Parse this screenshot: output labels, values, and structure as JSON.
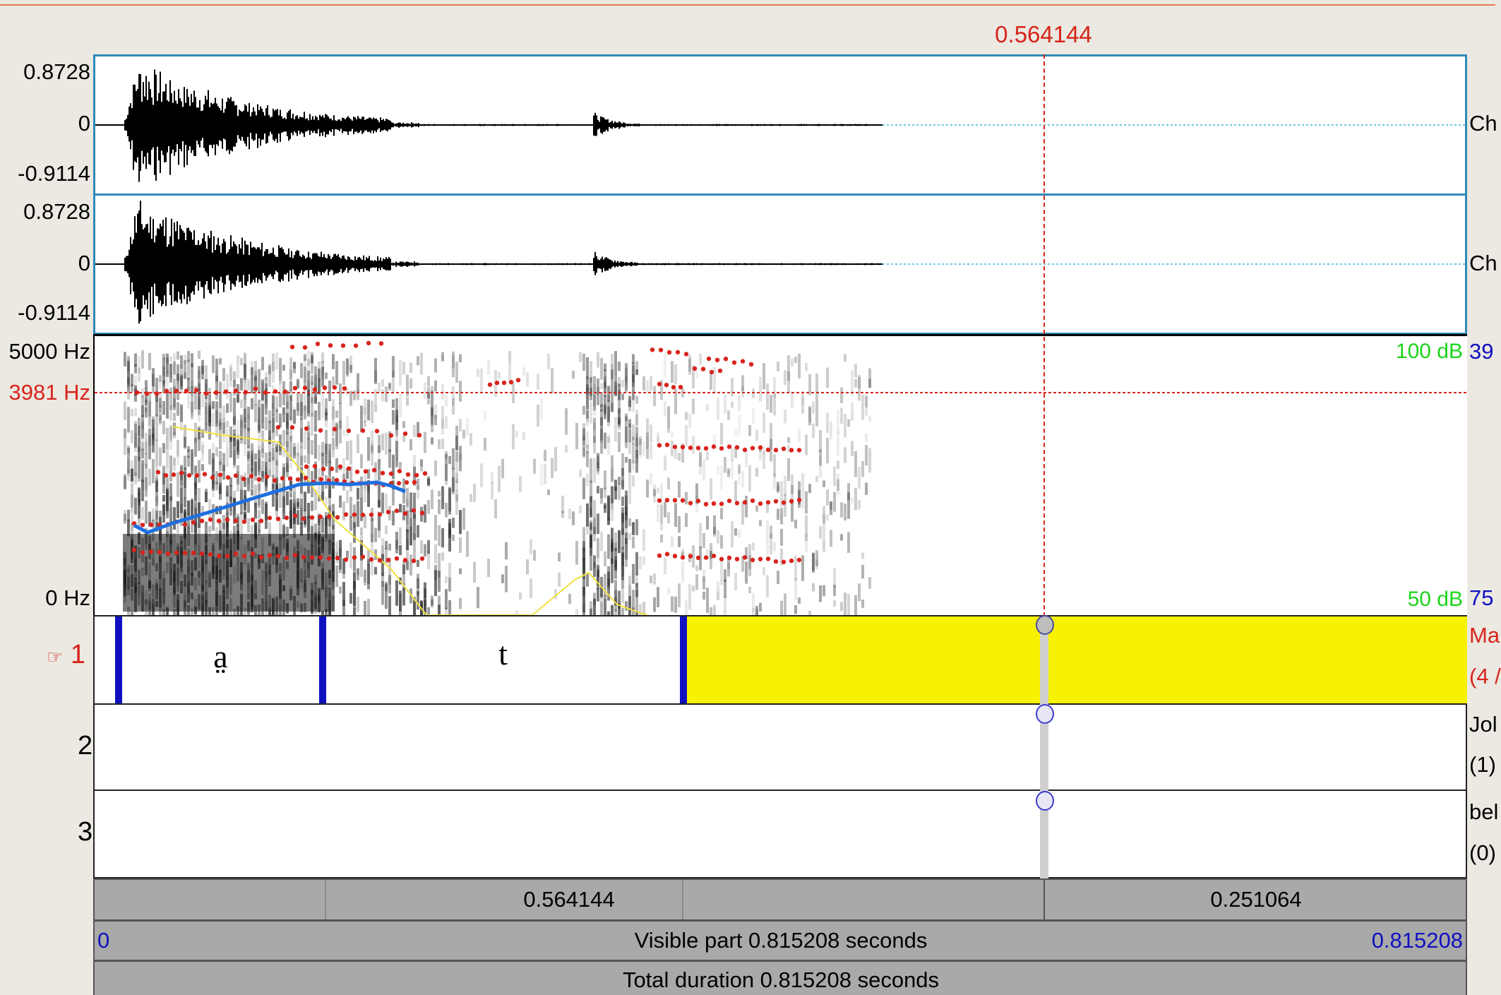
{
  "cursor": {
    "time": "0.564144",
    "freq_label": "3981 Hz"
  },
  "waveform": {
    "channel1": {
      "max": "0.8728",
      "zero": "0",
      "min": "-0.9114",
      "label": "Ch"
    },
    "channel2": {
      "max": "0.8728",
      "zero": "0",
      "min": "-0.9114",
      "label": "Ch"
    }
  },
  "spectrogram": {
    "top_freq": "5000 Hz",
    "bottom_freq": "0 Hz",
    "db_top": "100 dB",
    "db_bottom": "50 dB",
    "pitch_top_trunc": "39",
    "pitch_bottom_trunc": "75"
  },
  "tiers": [
    {
      "number": "1",
      "pointer_icon": "☞",
      "name_trunc": "Ma",
      "count_trunc": "(4 /",
      "intervals": [
        "a̤",
        "t",
        ""
      ]
    },
    {
      "number": "2",
      "name_trunc": "Jol",
      "count_trunc": "(1)"
    },
    {
      "number": "3",
      "name_trunc": "bel",
      "count_trunc": "(0)"
    }
  ],
  "time_bars": {
    "left_segment": "0.564144",
    "right_segment": "0.251064",
    "visible_start": "0",
    "visible_label": "Visible part 0.815208 seconds",
    "visible_end": "0.815208",
    "total_label": "Total duration 0.815208 seconds"
  },
  "colors": {
    "cursor": "#d8241c",
    "selection": "#f7f200",
    "formant": "#d8241c",
    "pitch": "#1e6fe0",
    "intensity": "#f0e040",
    "db": "#1cd41c",
    "boundary": "#1010c0"
  }
}
